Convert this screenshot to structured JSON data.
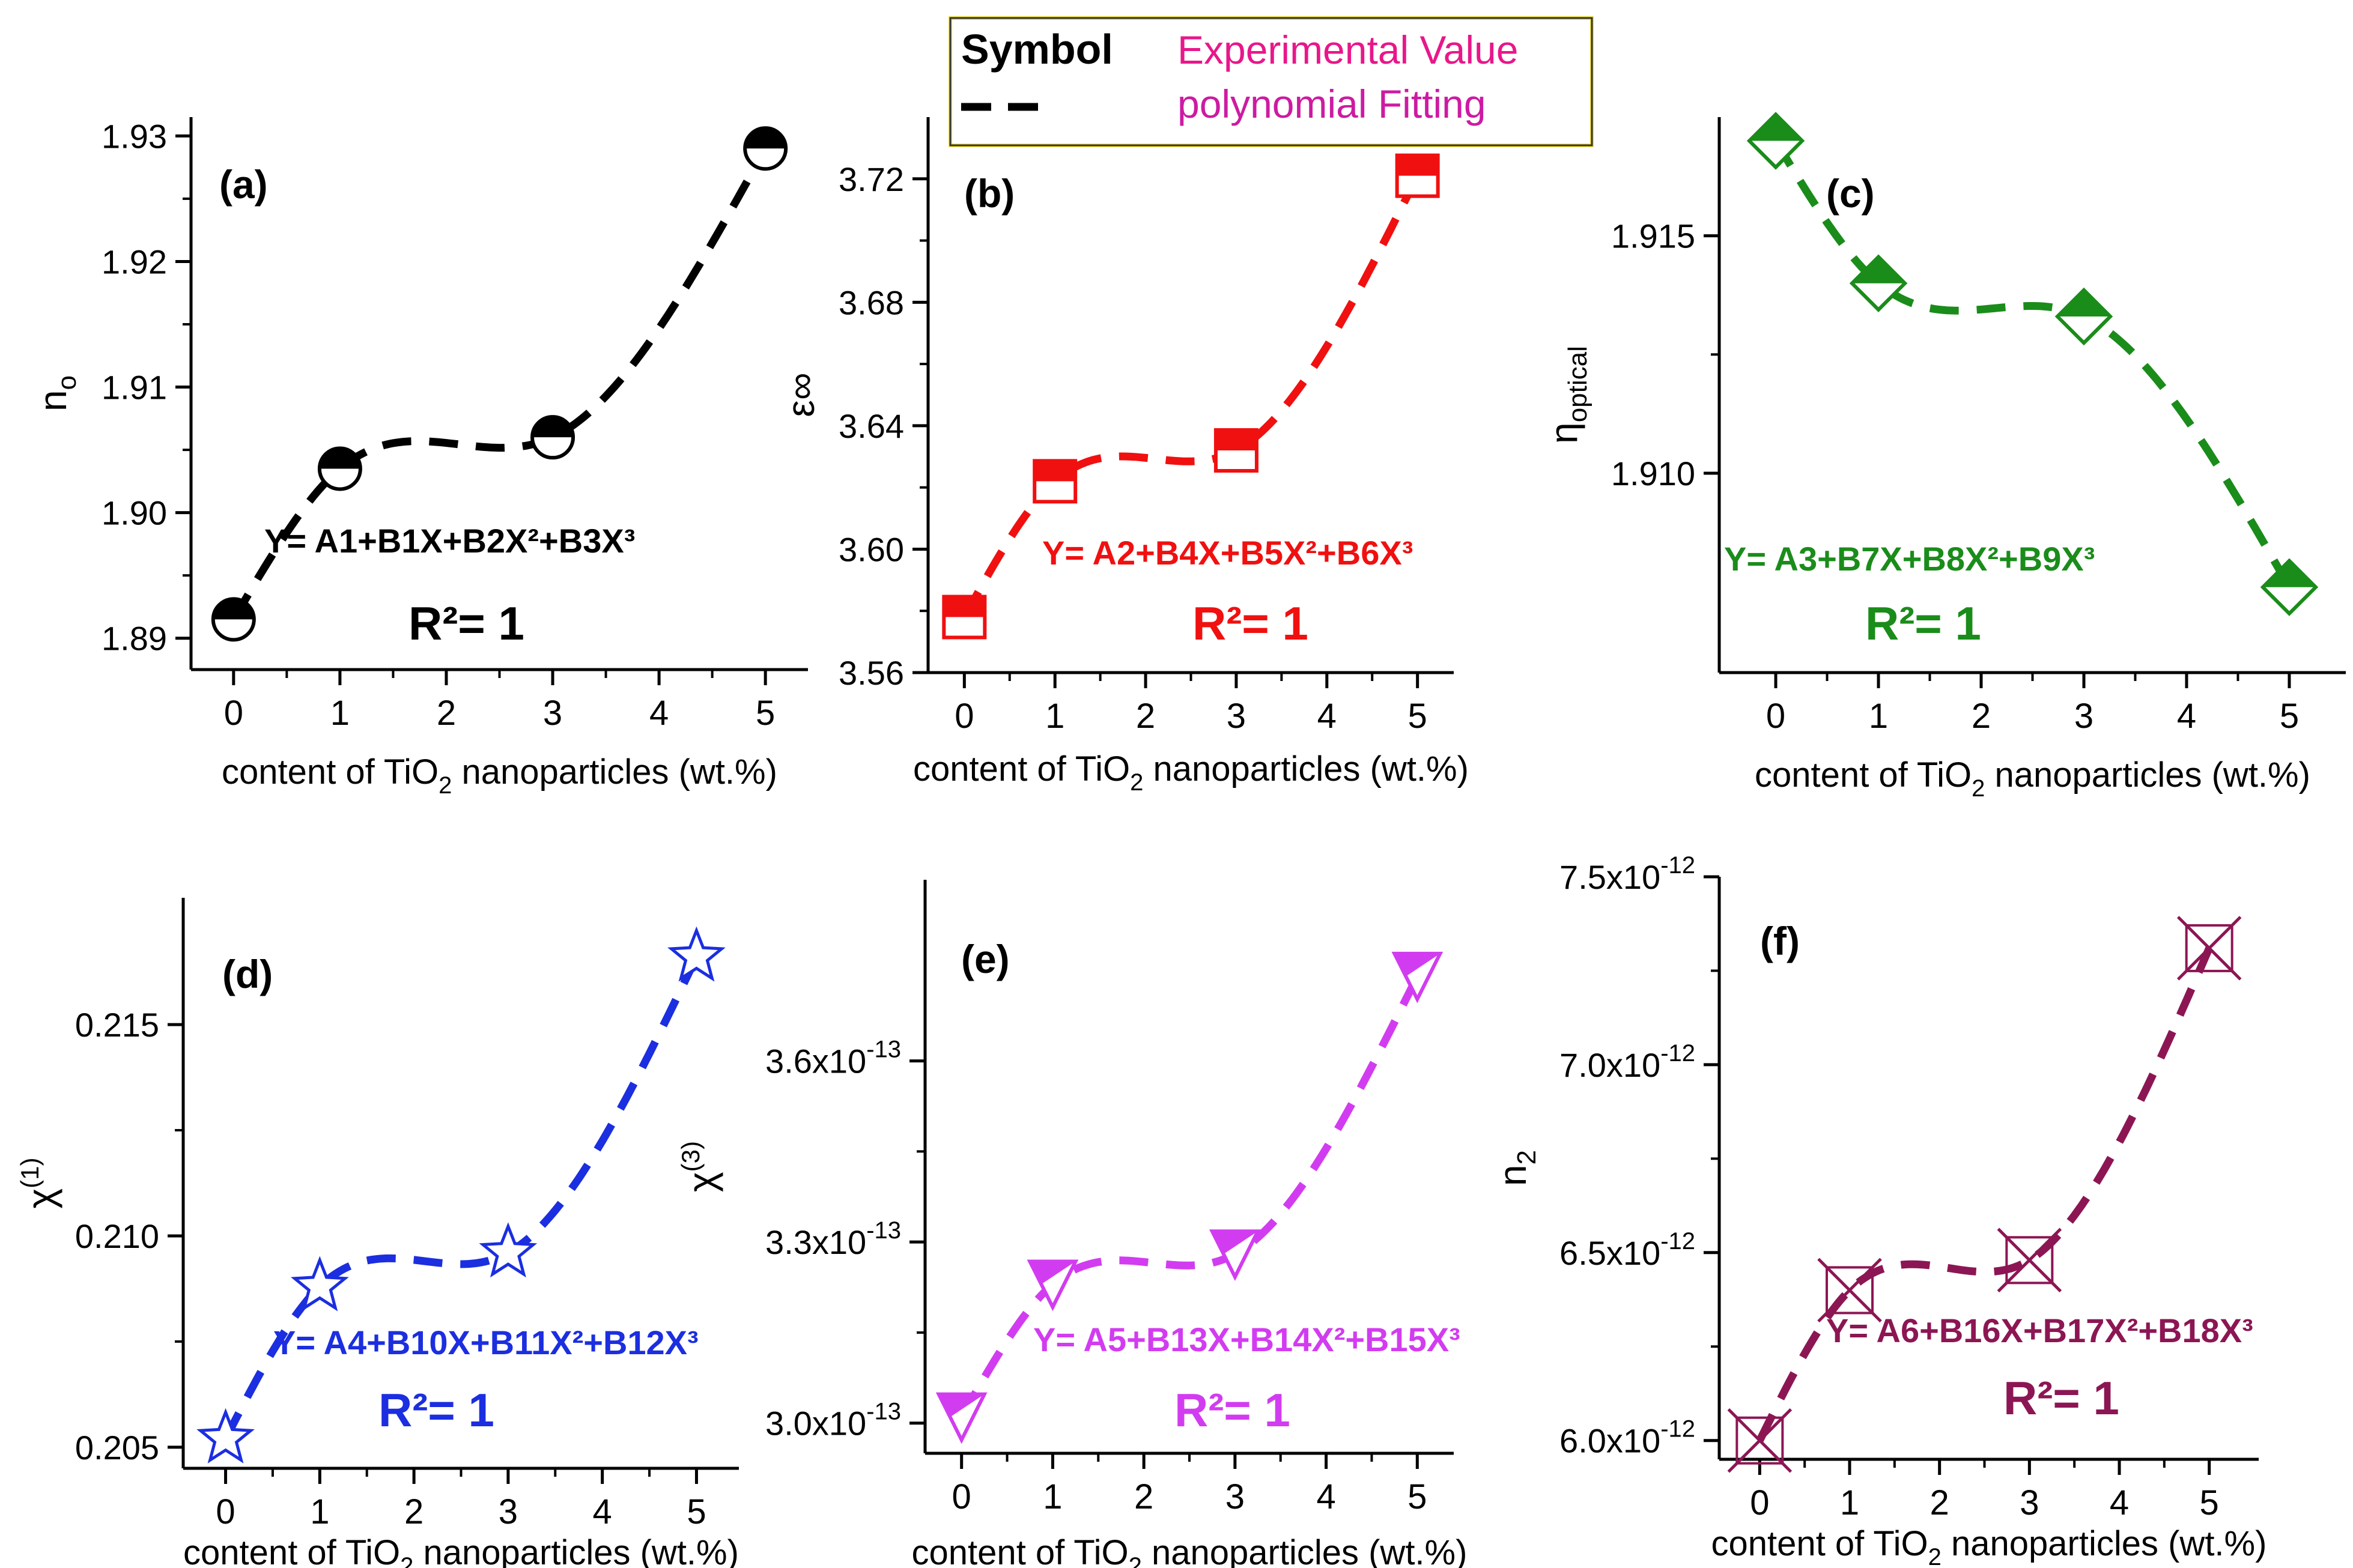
{
  "legend": {
    "symbol_header": "Symbol",
    "experimental_label": "Experimental Value",
    "fitting_label": "polynomial Fitting",
    "symbol_color": "#000000",
    "label_color": "#e8178a",
    "fitting_color": "#cc1ba2",
    "border_color": "#f2e23a"
  },
  "chart_data": [
    {
      "id": "a",
      "type": "scatter",
      "panel_label": "(a)",
      "color": "#000000",
      "marker": "circle",
      "ylabel": "n",
      "ylabel_sub": "o",
      "xlabel": "content of TiO",
      "xlabel_sub": "2",
      "xlabel_tail": " nanoparticles (wt.%)",
      "xlim": [
        -0.4,
        5.4
      ],
      "ylim": [
        1.8875,
        1.9315
      ],
      "xticks": [
        0,
        1,
        2,
        3,
        4,
        5
      ],
      "yticks": [
        1.89,
        1.9,
        1.91,
        1.92,
        1.93
      ],
      "ytick_labels": [
        "1.89",
        "1.90",
        "1.91",
        "1.92",
        "1.93"
      ],
      "x": [
        0,
        1,
        3,
        5
      ],
      "y": [
        1.8915,
        1.9035,
        1.906,
        1.929
      ],
      "equation": "Y= A1+B1X+B2X²+B3X³",
      "r2": "R²= 1"
    },
    {
      "id": "b",
      "type": "scatter",
      "panel_label": "(b)",
      "color": "#f01010",
      "marker": "square",
      "ylabel": "ε∞",
      "xlabel": "content of TiO",
      "xlabel_sub": "2",
      "xlabel_tail": " nanoparticles (wt.%)",
      "xlim": [
        -0.4,
        5.4
      ],
      "ylim": [
        3.56,
        3.74
      ],
      "xticks": [
        0,
        1,
        2,
        3,
        4,
        5
      ],
      "yticks": [
        3.56,
        3.6,
        3.64,
        3.68,
        3.72
      ],
      "ytick_labels": [
        "3.56",
        "3.60",
        "3.64",
        "3.68",
        "3.72"
      ],
      "x": [
        0,
        1,
        3,
        5
      ],
      "y": [
        3.578,
        3.622,
        3.632,
        3.721
      ],
      "equation": "Y= A2+B4X+B5X²+B6X³",
      "r2": "R²= 1"
    },
    {
      "id": "c",
      "type": "scatter",
      "panel_label": "(c)",
      "color": "#1a8c1a",
      "marker": "diamond",
      "ylabel": "η",
      "ylabel_sub": "optical",
      "xlabel": "content of TiO",
      "xlabel_sub": "2",
      "xlabel_tail": " nanoparticles (wt.%)",
      "xlim": [
        -0.55,
        5.55
      ],
      "ylim": [
        1.9058,
        1.9175
      ],
      "xticks": [
        0,
        1,
        2,
        3,
        4,
        5
      ],
      "yticks": [
        1.91,
        1.915
      ],
      "ytick_labels": [
        "1.910",
        "1.915"
      ],
      "x": [
        0,
        1,
        3,
        5
      ],
      "y": [
        1.917,
        1.914,
        1.9133,
        1.9076
      ],
      "equation": "Y= A3+B7X+B8X²+B9X³",
      "r2": "R²= 1"
    },
    {
      "id": "d",
      "type": "scatter",
      "panel_label": "(d)",
      "color": "#1b2ee0",
      "marker": "star",
      "ylabel": "χ",
      "ylabel_sup": "(1)",
      "xlabel": "content of TiO",
      "xlabel_sub": "2",
      "xlabel_tail": " nanoparticles (wt.%)",
      "xlim": [
        -0.45,
        5.45
      ],
      "ylim": [
        0.2045,
        0.218
      ],
      "xticks": [
        0,
        1,
        2,
        3,
        4,
        5
      ],
      "yticks": [
        0.205,
        0.21,
        0.215
      ],
      "ytick_labels": [
        "0.205",
        "0.210",
        "0.215"
      ],
      "x": [
        0,
        1,
        3,
        5
      ],
      "y": [
        0.2052,
        0.2088,
        0.2096,
        0.2166
      ],
      "equation": "Y= A4+B10X+B11X²+B12X³",
      "r2": "R²= 1"
    },
    {
      "id": "e",
      "type": "scatter",
      "panel_label": "(e)",
      "color": "#d23cf0",
      "marker": "triangle-down",
      "ylabel": "χ",
      "ylabel_sup": "(3)",
      "xlabel": "content of TiO",
      "xlabel_sub": "2",
      "xlabel_tail": " nanoparticles (wt.%)",
      "xlim": [
        -0.4,
        5.4
      ],
      "ylim": [
        2.95e-13,
        3.9e-13
      ],
      "xticks": [
        0,
        1,
        2,
        3,
        4,
        5
      ],
      "yticks": [
        3e-13,
        3.3e-13,
        3.6e-13
      ],
      "ytick_labels": [
        "3.0x10",
        "3.3x10",
        "3.6x10"
      ],
      "ytick_exp": "-13",
      "x": [
        0,
        1,
        3,
        5
      ],
      "y": [
        3.01e-13,
        3.23e-13,
        3.28e-13,
        3.74e-13
      ],
      "equation": "Y= A5+B13X+B14X²+B15X³",
      "r2": "R²= 1"
    },
    {
      "id": "f",
      "type": "scatter",
      "panel_label": "(f)",
      "color": "#8c1654",
      "marker": "x-square",
      "ylabel": "n",
      "ylabel_sub": "2",
      "xlabel": "content of TiO",
      "xlabel_sub": "2",
      "xlabel_tail": " nanoparticles (wt.%)",
      "xlim": [
        -0.45,
        5.55
      ],
      "ylim": [
        5.95e-12,
        7.5e-12
      ],
      "xticks": [
        0,
        1,
        2,
        3,
        4,
        5
      ],
      "yticks": [
        6e-12,
        6.5e-12,
        7e-12,
        7.5e-12
      ],
      "ytick_labels": [
        "6.0x10",
        "6.5x10",
        "7.0x10",
        "7.5x10"
      ],
      "ytick_exp": "-12",
      "x": [
        0,
        1,
        3,
        5
      ],
      "y": [
        6e-12,
        6.4e-12,
        6.48e-12,
        7.31e-12
      ],
      "equation": "Y= A6+B16X+B17X²+B18X³",
      "r2": "R²= 1"
    }
  ]
}
